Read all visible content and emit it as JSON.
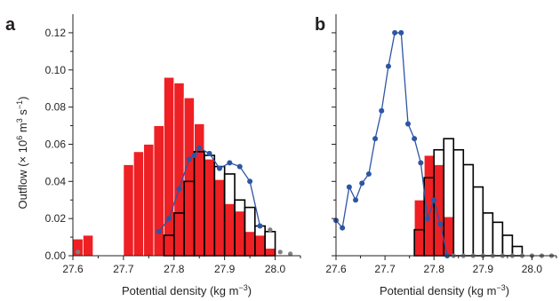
{
  "figure": {
    "y_label_prefix": "Outflow (× 10",
    "y_label_exp1": "6",
    "y_label_mid": " m",
    "y_label_exp2": "3",
    "y_label_mid2": " s",
    "y_label_exp3": "−1",
    "y_label_suffix": ")"
  },
  "colors": {
    "red_fill": "#ee2024",
    "red_edge": "#ffffff",
    "black_edge": "#000000",
    "blue_line": "#2e55a4",
    "grey_marker": "#7f7f7f"
  },
  "chart_data": [
    {
      "panel_label": "a",
      "type": "bar",
      "xlabel_text": "Potential density (kg m",
      "xlabel_exp": "−3",
      "xlabel_close": ")",
      "xlim": [
        27.6,
        28.05
      ],
      "ylim": [
        0,
        0.13
      ],
      "xticks": [
        "27.6",
        "27.7",
        "27.8",
        "27.9",
        "28.0"
      ],
      "yticks": [
        "0.00",
        "0.02",
        "0.04",
        "0.06",
        "0.08",
        "0.10",
        "0.12"
      ],
      "bin_width": 0.02,
      "series": [
        {
          "kind": "red_histogram",
          "bins": [
            27.6,
            27.62,
            27.64,
            27.66,
            27.68,
            27.7,
            27.72,
            27.74,
            27.76,
            27.78,
            27.8,
            27.82,
            27.84,
            27.86,
            27.88,
            27.9,
            27.92,
            27.94,
            27.96,
            27.98
          ],
          "values": [
            0.009,
            0.011,
            0.0,
            0.0,
            0.0,
            0.049,
            0.056,
            0.06,
            0.07,
            0.096,
            0.093,
            0.085,
            0.071,
            0.052,
            0.041,
            0.028,
            0.024,
            0.013,
            0.011,
            0.004
          ]
        },
        {
          "kind": "black_outline_histogram",
          "bins": [
            27.78,
            27.8,
            27.82,
            27.84,
            27.86,
            27.88,
            27.9,
            27.92,
            27.94,
            27.96,
            27.98
          ],
          "values": [
            0.011,
            0.023,
            0.04,
            0.056,
            0.054,
            0.048,
            0.044,
            0.03,
            0.026,
            0.016,
            0.013
          ]
        },
        {
          "kind": "blue_line",
          "x": [
            27.77,
            27.79,
            27.81,
            27.83,
            27.84,
            27.85,
            27.87,
            27.89,
            27.91,
            27.93,
            27.95,
            27.97
          ],
          "y": [
            0.013,
            0.02,
            0.036,
            0.052,
            0.054,
            0.058,
            0.055,
            0.047,
            0.05,
            0.048,
            0.04,
            0.016
          ]
        },
        {
          "kind": "grey_points",
          "x": [
            27.61,
            27.99,
            28.01,
            28.03
          ],
          "y": [
            0.002,
            0.014,
            0.002,
            0.001
          ]
        }
      ]
    },
    {
      "panel_label": "b",
      "type": "bar",
      "xlabel_text": "Potential density (kg m",
      "xlabel_exp": "−3",
      "xlabel_close": ")",
      "xlim": [
        27.6,
        28.05
      ],
      "ylim": [
        0,
        0.13
      ],
      "xticks": [
        "27.6",
        "27.7",
        "27.8",
        "27.9",
        "28.0"
      ],
      "bin_width": 0.02,
      "series": [
        {
          "kind": "red_histogram",
          "bins": [
            27.76,
            27.78,
            27.8,
            27.82
          ],
          "values": [
            0.03,
            0.054,
            0.049,
            0.021
          ]
        },
        {
          "kind": "black_outline_histogram",
          "bins": [
            27.76,
            27.78,
            27.8,
            27.82,
            27.84,
            27.86,
            27.88,
            27.9,
            27.92,
            27.94,
            27.96
          ],
          "values": [
            0.014,
            0.042,
            0.057,
            0.063,
            0.057,
            0.049,
            0.037,
            0.023,
            0.018,
            0.011,
            0.005
          ]
        },
        {
          "kind": "blue_line",
          "x": [
            27.6,
            27.613,
            27.627,
            27.64,
            27.653,
            27.667,
            27.68,
            27.693,
            27.707,
            27.72,
            27.733,
            27.747,
            27.76,
            27.773,
            27.787,
            27.8,
            27.813,
            27.827
          ],
          "y": [
            0.019,
            0.015,
            0.037,
            0.03,
            0.039,
            0.044,
            0.063,
            0.078,
            0.102,
            0.12,
            0.12,
            0.071,
            0.063,
            0.05,
            0.02,
            0.03,
            0.017,
            0.0
          ]
        },
        {
          "kind": "grey_points",
          "x": [
            27.84,
            27.86,
            27.88,
            27.9,
            27.92,
            27.94,
            27.96,
            27.98,
            28.0,
            28.02,
            28.04
          ],
          "y": [
            0,
            0,
            0,
            0,
            0,
            0,
            0,
            0,
            0,
            0,
            0
          ]
        }
      ]
    }
  ]
}
